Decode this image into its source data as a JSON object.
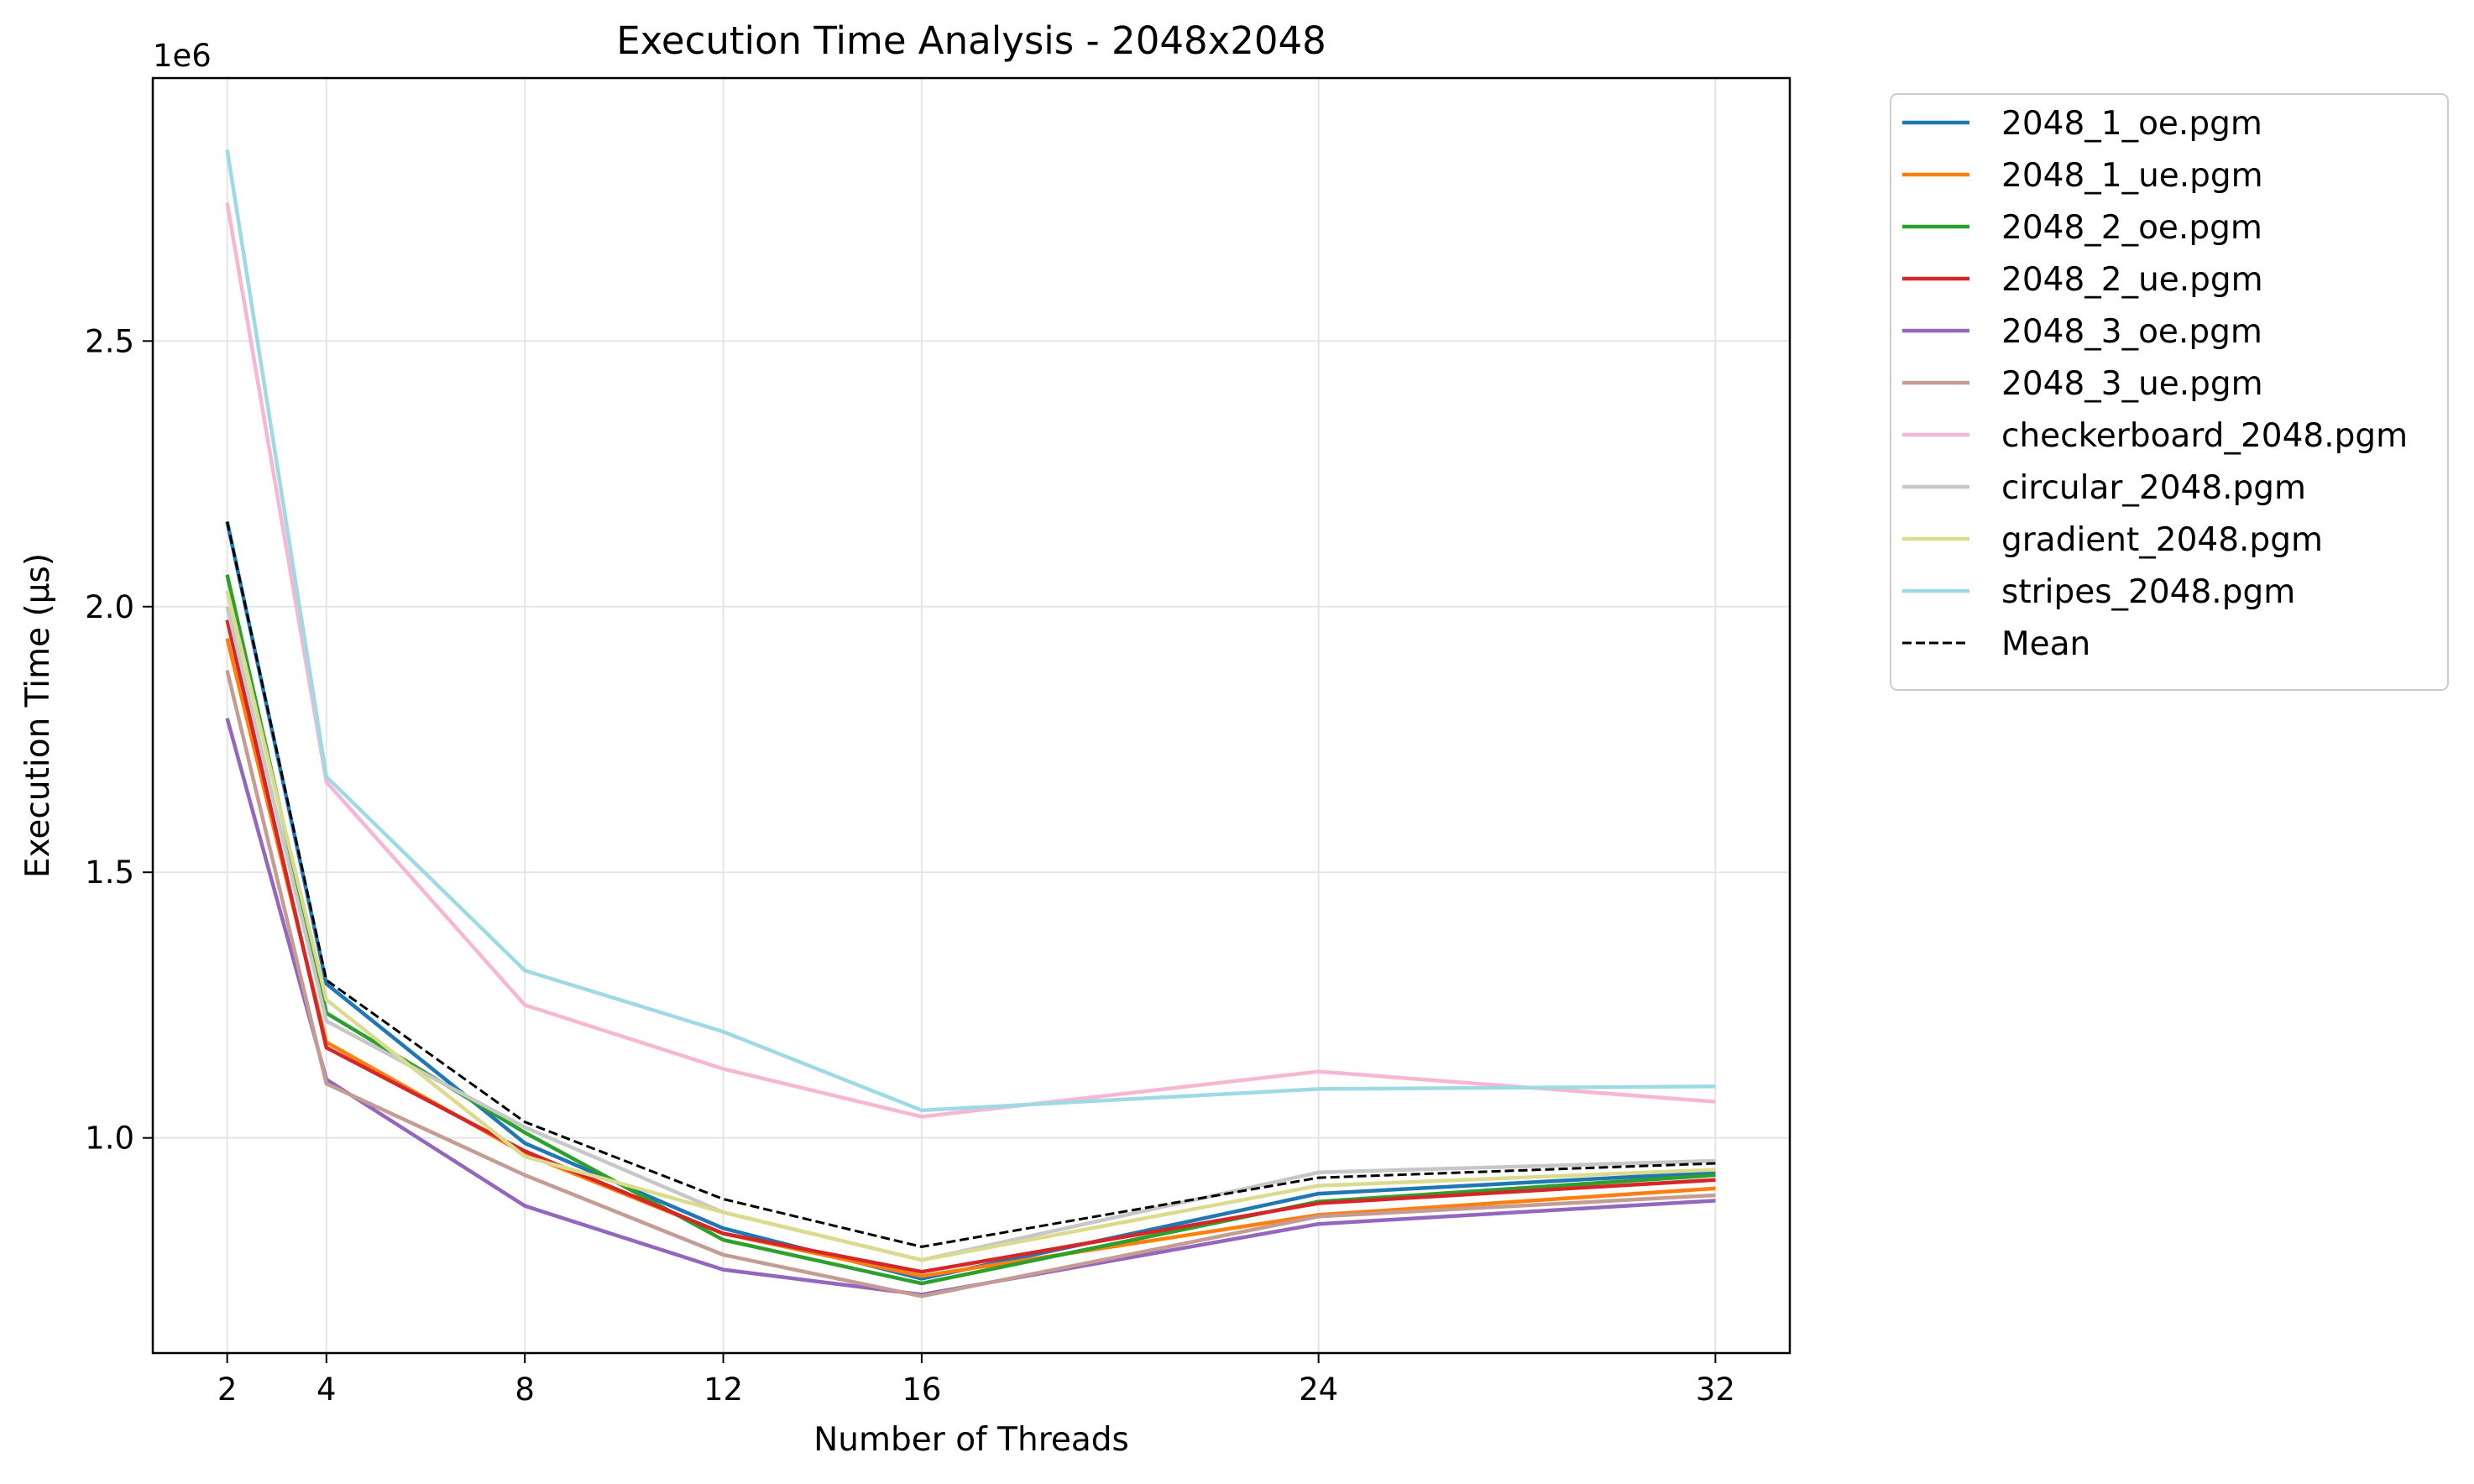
{
  "chart_data": {
    "type": "line",
    "title": "Execution Time Analysis - 2048x2048",
    "xlabel": "Number of Threads",
    "ylabel": "Execution Time (µs)",
    "y_offset_label": "1e6",
    "x": [
      2,
      4,
      8,
      12,
      16,
      24,
      32
    ],
    "x_ticks": [
      2,
      4,
      8,
      12,
      16,
      24,
      32
    ],
    "xlim": [
      0.5,
      33.5
    ],
    "y_ticks": [
      1.0,
      1.5,
      2.0,
      2.5
    ],
    "y_tick_labels": [
      "1.0",
      "1.5",
      "2.0",
      "2.5"
    ],
    "ylim": [
      0.595,
      2.995
    ],
    "grid": true,
    "legend_position": "outside-right",
    "series": [
      {
        "name": "2048_1_oe.pgm",
        "color": "#1f77b4",
        "style": "solid",
        "values": [
          2.16,
          1.29,
          0.99,
          0.83,
          0.735,
          0.895,
          0.935
        ]
      },
      {
        "name": "2048_1_ue.pgm",
        "color": "#ff7f0e",
        "style": "solid",
        "values": [
          1.94,
          1.18,
          0.97,
          0.82,
          0.74,
          0.855,
          0.905
        ]
      },
      {
        "name": "2048_2_oe.pgm",
        "color": "#2ca02c",
        "style": "solid",
        "values": [
          2.06,
          1.235,
          1.01,
          0.808,
          0.726,
          0.88,
          0.93
        ]
      },
      {
        "name": "2048_2_ue.pgm",
        "color": "#d62728",
        "style": "solid",
        "values": [
          1.975,
          1.17,
          0.975,
          0.82,
          0.748,
          0.877,
          0.921
        ]
      },
      {
        "name": "2048_3_oe.pgm",
        "color": "#9467bd",
        "style": "solid",
        "values": [
          1.79,
          1.11,
          0.872,
          0.752,
          0.705,
          0.838,
          0.882
        ]
      },
      {
        "name": "2048_3_ue.pgm",
        "color": "#c49c94",
        "style": "solid",
        "values": [
          1.88,
          1.102,
          0.93,
          0.78,
          0.702,
          0.852,
          0.892
        ]
      },
      {
        "name": "checkerboard_2048.pgm",
        "color": "#f7b6d2",
        "style": "solid",
        "values": [
          2.76,
          1.67,
          1.25,
          1.13,
          1.04,
          1.125,
          1.068
        ]
      },
      {
        "name": "circular_2048.pgm",
        "color": "#c7c7c7",
        "style": "solid",
        "values": [
          2.0,
          1.22,
          1.02,
          0.86,
          0.77,
          0.935,
          0.957
        ]
      },
      {
        "name": "gradient_2048.pgm",
        "color": "#dbdb8d",
        "style": "solid",
        "values": [
          2.03,
          1.26,
          0.965,
          0.86,
          0.77,
          0.91,
          0.94
        ]
      },
      {
        "name": "stripes_2048.pgm",
        "color": "#9edae5",
        "style": "solid",
        "values": [
          2.86,
          1.68,
          1.315,
          1.2,
          1.052,
          1.092,
          1.097
        ]
      },
      {
        "name": "Mean",
        "color": "#000000",
        "style": "dashed",
        "values": [
          2.16,
          1.297,
          1.03,
          0.885,
          0.795,
          0.925,
          0.952
        ]
      }
    ]
  }
}
